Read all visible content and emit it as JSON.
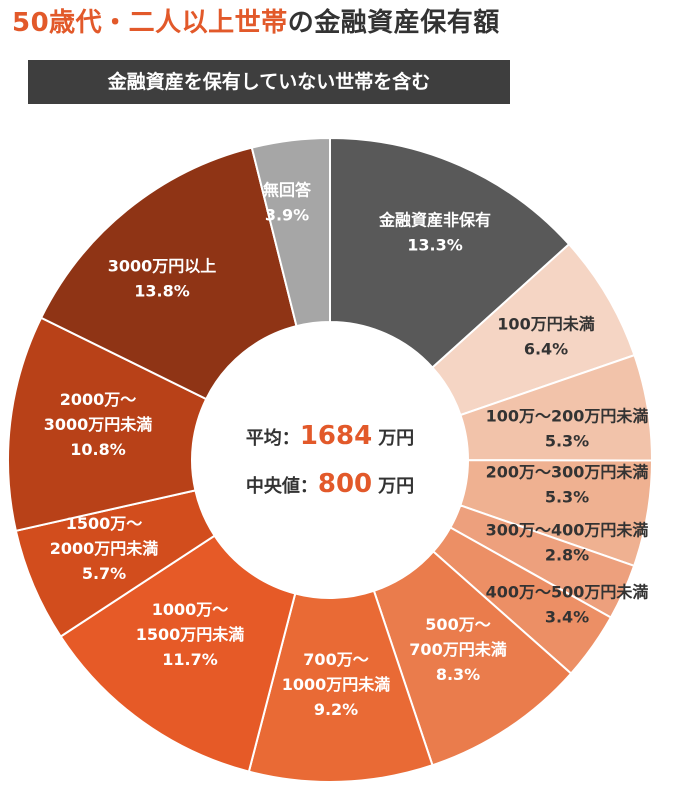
{
  "title": {
    "accent": "50歳代・二人以上世帯",
    "rest": "の金融資産保有額"
  },
  "subtitle": "金融資産を保有していない世帯を含む",
  "center": {
    "average": {
      "label": "平均：",
      "value": "1684",
      "unit": "万円"
    },
    "median": {
      "label": "中央値：",
      "value": "800",
      "unit": "万円"
    }
  },
  "chart_data": {
    "type": "pie",
    "title": "50歳代・二人以上世帯の金融資産保有額",
    "subtitle": "金融資産を保有していない世帯を含む",
    "unit": "%",
    "slices": [
      {
        "lines": [
          "金融資産非保有",
          "13.3%"
        ],
        "category": "金融資産非保有",
        "value": 13.3,
        "color": "#595959",
        "text_color": "#ffffff"
      },
      {
        "lines": [
          "100万円未満",
          "6.4%"
        ],
        "category": "100万円未満",
        "value": 6.4,
        "color": "#f5d5c4",
        "text_color": "#333333"
      },
      {
        "lines": [
          "100万～200万円未満",
          "5.3%"
        ],
        "category": "100万～200万円未満",
        "value": 5.3,
        "color": "#f2c3aa",
        "text_color": "#333333"
      },
      {
        "lines": [
          "200万～300万円未満",
          "5.3%"
        ],
        "category": "200万～300万円未満",
        "value": 5.3,
        "color": "#efb191",
        "text_color": "#333333"
      },
      {
        "lines": [
          "300万～400万円未満",
          "2.8%"
        ],
        "category": "300万～400万円未満",
        "value": 2.8,
        "color": "#eda07d",
        "text_color": "#333333"
      },
      {
        "lines": [
          "400万～500万円未満",
          "3.4%"
        ],
        "category": "400万～500万円未満",
        "value": 3.4,
        "color": "#ec8f65",
        "text_color": "#333333"
      },
      {
        "lines": [
          "500万～",
          "700万円未満",
          "8.3%"
        ],
        "category": "500万～700万円未満",
        "value": 8.3,
        "color": "#ea7c4c",
        "text_color": "#ffffff"
      },
      {
        "lines": [
          "700万～",
          "1000万円未満",
          "9.2%"
        ],
        "category": "700万～1000万円未満",
        "value": 9.2,
        "color": "#e96a35",
        "text_color": "#ffffff"
      },
      {
        "lines": [
          "1000万～",
          "1500万円未満",
          "11.7%"
        ],
        "category": "1000万～1500万円未満",
        "value": 11.7,
        "color": "#e65a27",
        "text_color": "#ffffff"
      },
      {
        "lines": [
          "1500万～",
          "2000万円未満",
          "5.7%"
        ],
        "category": "1500万～2000万円未満",
        "value": 5.7,
        "color": "#d24d1d",
        "text_color": "#ffffff"
      },
      {
        "lines": [
          "2000万～",
          "3000万円未満",
          "10.8%"
        ],
        "category": "2000万～3000万円未満",
        "value": 10.8,
        "color": "#b84118",
        "text_color": "#ffffff"
      },
      {
        "lines": [
          "3000万円以上",
          "13.8%"
        ],
        "category": "3000万円以上",
        "value": 13.8,
        "color": "#8f3415",
        "text_color": "#ffffff"
      },
      {
        "lines": [
          "無回答",
          "3.9%"
        ],
        "category": "無回答",
        "value": 3.9,
        "color": "#a6a6a6",
        "text_color": "#ffffff"
      }
    ],
    "start": "12 o'clock",
    "direction": "clockwise",
    "legend": "none"
  },
  "colors": {
    "accent": "#e2592a",
    "dark_text": "#333333",
    "subtitle_bg": "#3e3e3e"
  }
}
